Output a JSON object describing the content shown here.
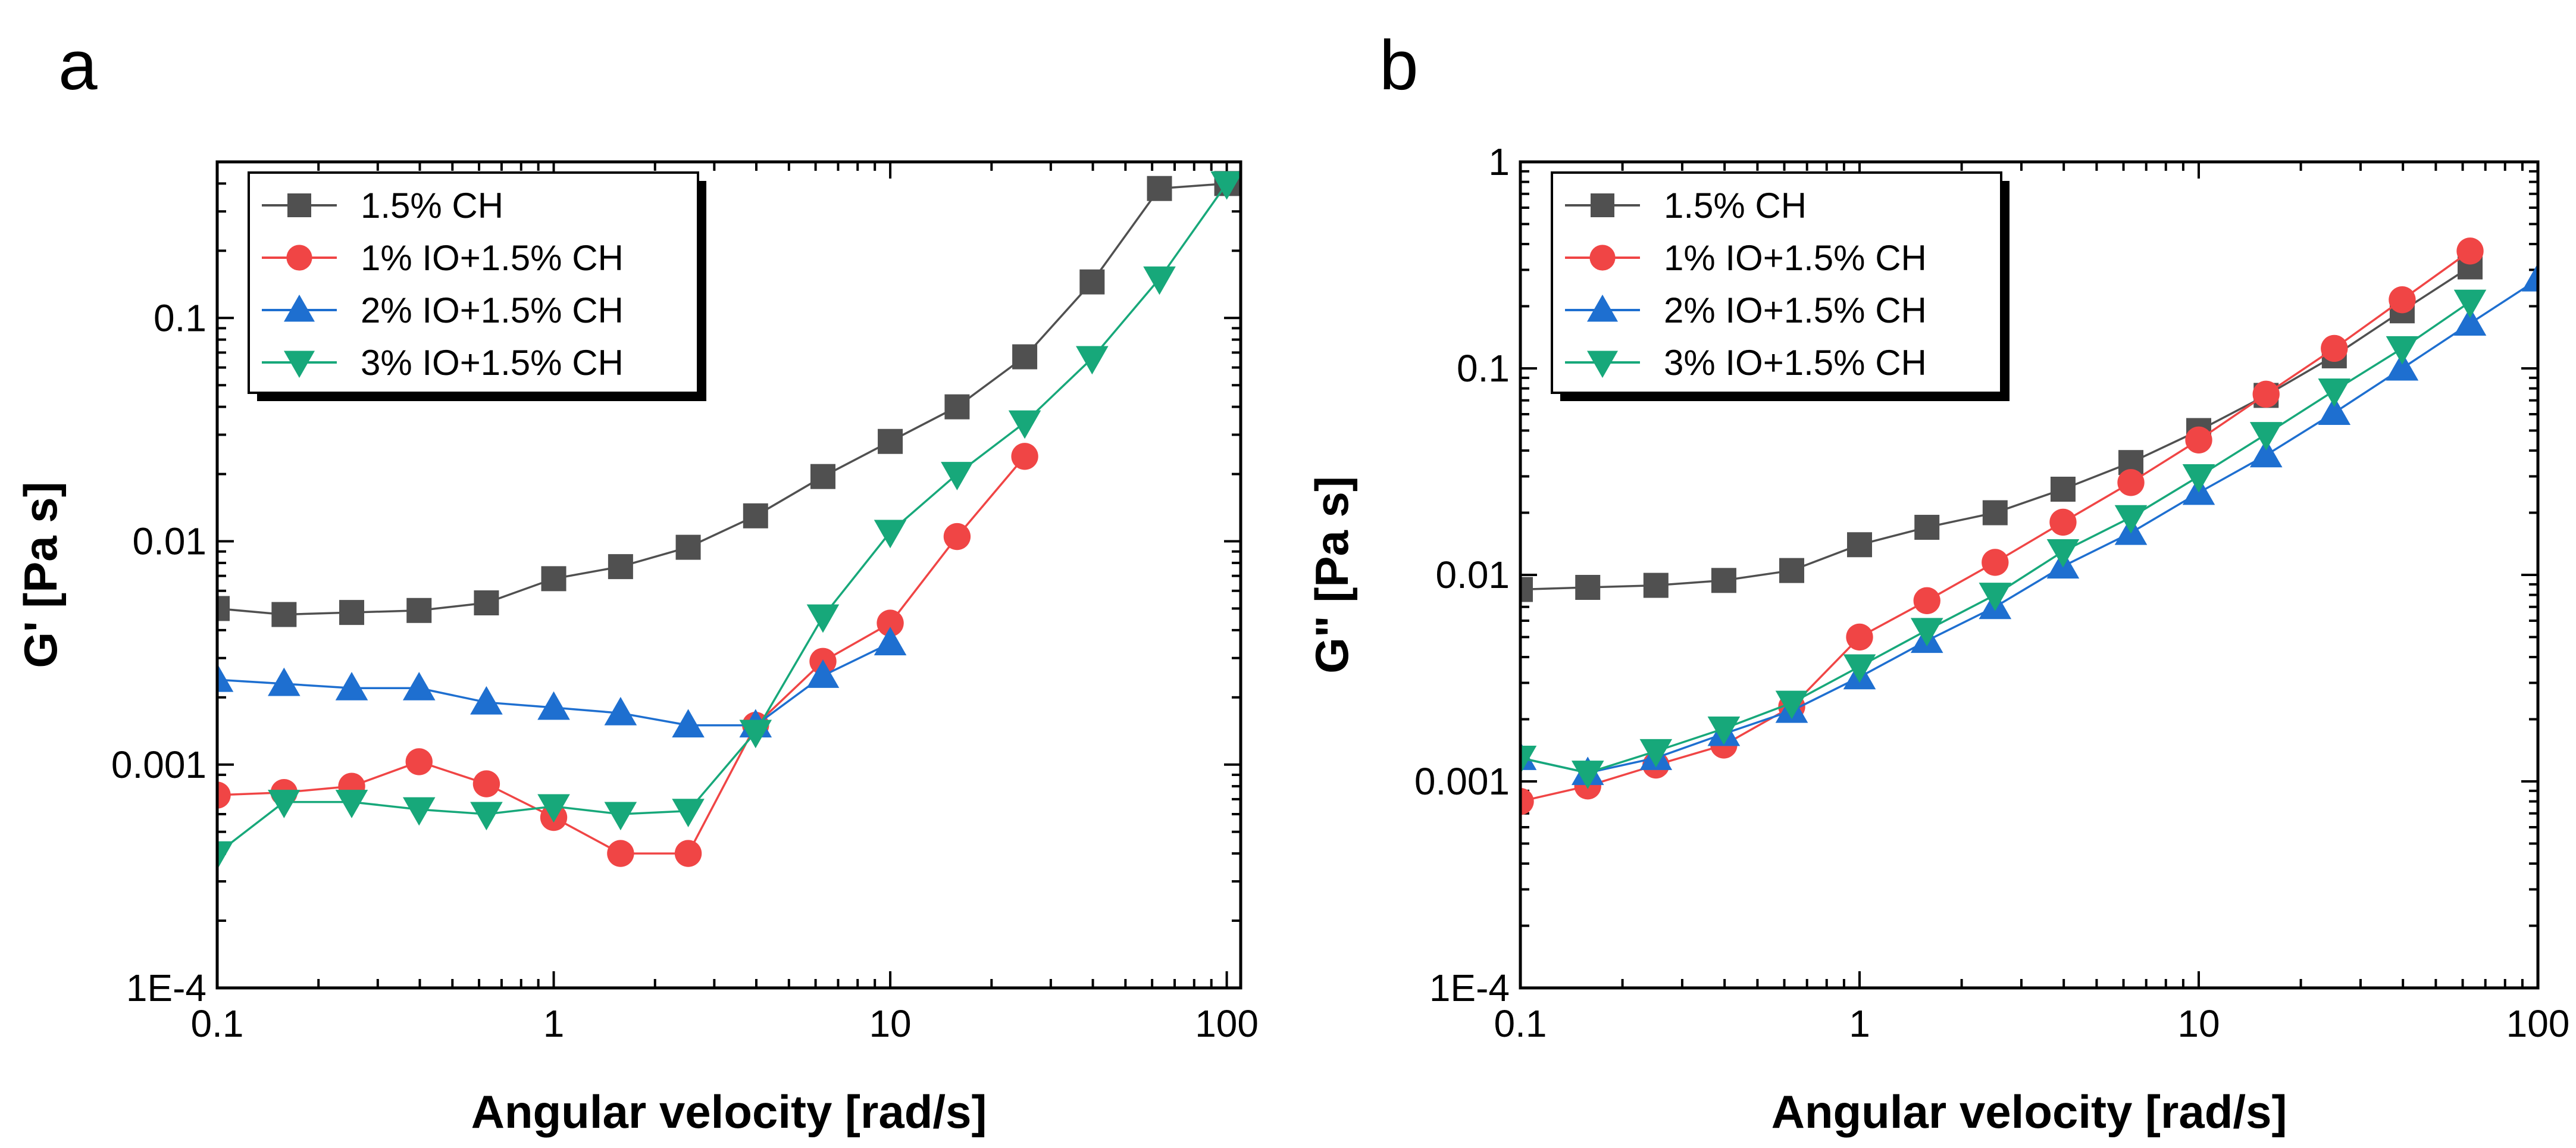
{
  "chart_data": [
    {
      "type": "line",
      "panel_label": "a",
      "xscale": "log",
      "yscale": "log",
      "xlabel": "Angular velocity [rad/s]",
      "ylabel": "G' [Pa s]",
      "xlim": [
        0.1,
        110
      ],
      "ylim": [
        0.0001,
        0.5
      ],
      "xticks": [
        {
          "v": 0.1,
          "label": "0.1"
        },
        {
          "v": 1,
          "label": "1"
        },
        {
          "v": 10,
          "label": "10"
        },
        {
          "v": 100,
          "label": "100"
        }
      ],
      "yticks": [
        {
          "v": 0.0001,
          "label": "1E-4"
        },
        {
          "v": 0.001,
          "label": "0.001"
        },
        {
          "v": 0.01,
          "label": "0.01"
        },
        {
          "v": 0.1,
          "label": "0.1"
        }
      ],
      "legend_position": "top-left",
      "series": [
        {
          "name": "1.5% CH",
          "color": "#505050",
          "marker": "square",
          "x": [
            0.1,
            0.158,
            0.251,
            0.398,
            0.631,
            1,
            1.58,
            2.51,
            3.98,
            6.31,
            10,
            15.8,
            25.1,
            39.8,
            63.1,
            100
          ],
          "y": [
            0.005,
            0.0047,
            0.0048,
            0.0049,
            0.0053,
            0.0068,
            0.0077,
            0.0094,
            0.013,
            0.0195,
            0.028,
            0.04,
            0.067,
            0.145,
            0.38,
            0.4
          ]
        },
        {
          "name": "1% IO+1.5% CH",
          "color": "#F04545",
          "marker": "circle",
          "x": [
            0.1,
            0.158,
            0.251,
            0.398,
            0.631,
            1,
            1.58,
            2.51,
            3.98,
            6.31,
            10,
            15.8,
            25.1
          ],
          "y": [
            0.00073,
            0.00075,
            0.0008,
            0.00103,
            0.00082,
            0.00058,
            0.0004,
            0.0004,
            0.0015,
            0.0029,
            0.0043,
            0.0105,
            0.024
          ]
        },
        {
          "name": "2% IO+1.5% CH",
          "color": "#1E6FD0",
          "marker": "triangle-up",
          "x": [
            0.1,
            0.158,
            0.251,
            0.398,
            0.631,
            1,
            1.58,
            2.51,
            3.98,
            6.31,
            10
          ],
          "y": [
            0.0024,
            0.0023,
            0.0022,
            0.0022,
            0.0019,
            0.0018,
            0.0017,
            0.0015,
            0.0015,
            0.0025,
            0.0035
          ]
        },
        {
          "name": "3% IO+1.5% CH",
          "color": "#17A87A",
          "marker": "triangle-down",
          "x": [
            0.1,
            0.158,
            0.251,
            0.398,
            0.631,
            1,
            1.58,
            2.51,
            3.98,
            6.31,
            10,
            15.8,
            25.1,
            39.8,
            63.1,
            100
          ],
          "y": [
            0.0004,
            0.00068,
            0.00068,
            0.00063,
            0.0006,
            0.00065,
            0.0006,
            0.00062,
            0.0014,
            0.0046,
            0.011,
            0.02,
            0.034,
            0.066,
            0.15,
            0.4
          ]
        }
      ]
    },
    {
      "type": "line",
      "panel_label": "b",
      "xscale": "log",
      "yscale": "log",
      "xlabel": "Angular velocity [rad/s]",
      "ylabel": "G\" [Pa s]",
      "xlim": [
        0.1,
        100
      ],
      "ylim": [
        0.0001,
        1
      ],
      "xticks": [
        {
          "v": 0.1,
          "label": "0.1"
        },
        {
          "v": 1,
          "label": "1"
        },
        {
          "v": 10,
          "label": "10"
        },
        {
          "v": 100,
          "label": "100"
        }
      ],
      "yticks": [
        {
          "v": 0.0001,
          "label": "1E-4"
        },
        {
          "v": 0.001,
          "label": "0.001"
        },
        {
          "v": 0.01,
          "label": "0.01"
        },
        {
          "v": 0.1,
          "label": "0.1"
        },
        {
          "v": 1,
          "label": "1"
        }
      ],
      "legend_position": "top-left",
      "series": [
        {
          "name": "1.5% CH",
          "color": "#505050",
          "marker": "square",
          "x": [
            0.1,
            0.158,
            0.251,
            0.398,
            0.631,
            1,
            1.58,
            2.51,
            3.98,
            6.31,
            10,
            15.8,
            25.1,
            39.8,
            63.1
          ],
          "y": [
            0.0085,
            0.0087,
            0.0089,
            0.0094,
            0.0105,
            0.014,
            0.017,
            0.02,
            0.026,
            0.035,
            0.05,
            0.074,
            0.115,
            0.19,
            0.31
          ]
        },
        {
          "name": "1% IO+1.5% CH",
          "color": "#F04545",
          "marker": "circle",
          "x": [
            0.1,
            0.158,
            0.251,
            0.398,
            0.631,
            1,
            1.58,
            2.51,
            3.98,
            6.31,
            10,
            15.8,
            25.1,
            39.8,
            63.1
          ],
          "y": [
            0.0008,
            0.00095,
            0.0012,
            0.0015,
            0.0023,
            0.005,
            0.0075,
            0.0115,
            0.018,
            0.028,
            0.045,
            0.075,
            0.125,
            0.215,
            0.37
          ]
        },
        {
          "name": "2% IO+1.5% CH",
          "color": "#1E6FD0",
          "marker": "triangle-up",
          "x": [
            0.1,
            0.158,
            0.251,
            0.398,
            0.631,
            1,
            1.58,
            2.51,
            3.98,
            6.31,
            10,
            15.8,
            25.1,
            39.8,
            63.1,
            100
          ],
          "y": [
            0.0013,
            0.0011,
            0.0013,
            0.0017,
            0.0022,
            0.0032,
            0.0048,
            0.007,
            0.011,
            0.016,
            0.025,
            0.038,
            0.061,
            0.1,
            0.165,
            0.27
          ]
        },
        {
          "name": "3% IO+1.5% CH",
          "color": "#17A87A",
          "marker": "triangle-down",
          "x": [
            0.1,
            0.158,
            0.251,
            0.398,
            0.631,
            1,
            1.58,
            2.51,
            3.98,
            6.31,
            10,
            15.8,
            25.1,
            39.8,
            63.1
          ],
          "y": [
            0.0013,
            0.0011,
            0.0014,
            0.0018,
            0.0024,
            0.0036,
            0.0054,
            0.008,
            0.013,
            0.019,
            0.03,
            0.048,
            0.078,
            0.125,
            0.21
          ]
        }
      ]
    }
  ]
}
